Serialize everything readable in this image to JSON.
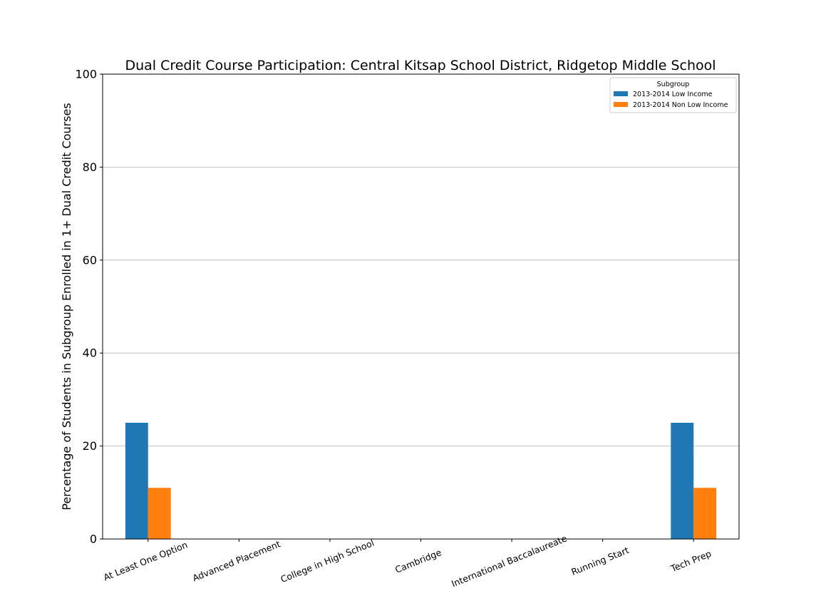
{
  "chart_data": {
    "type": "bar",
    "title": "Dual Credit Course Participation: Central Kitsap School District, Ridgetop Middle School",
    "xlabel": "",
    "ylabel": "Percentage of Students in Subgroup Enrolled in 1+ Dual Credit Courses",
    "ylim": [
      0,
      100
    ],
    "yticks": [
      0,
      20,
      40,
      60,
      80,
      100
    ],
    "grid": "horizontal",
    "categories": [
      "At Least One Option",
      "Advanced Placement",
      "College in High School",
      "Cambridge",
      "International Baccalaureate",
      "Running Start",
      "Tech Prep"
    ],
    "series": [
      {
        "name": "2013-2014 Low Income",
        "color": "#1f77b4",
        "values": [
          25,
          0,
          0,
          0,
          0,
          0,
          25
        ]
      },
      {
        "name": "2013-2014 Non Low Income",
        "color": "#ff7f0e",
        "values": [
          11,
          0,
          0,
          0,
          0,
          0,
          11
        ]
      }
    ],
    "legend": {
      "title": "Subgroup",
      "placement": "top-right"
    }
  }
}
